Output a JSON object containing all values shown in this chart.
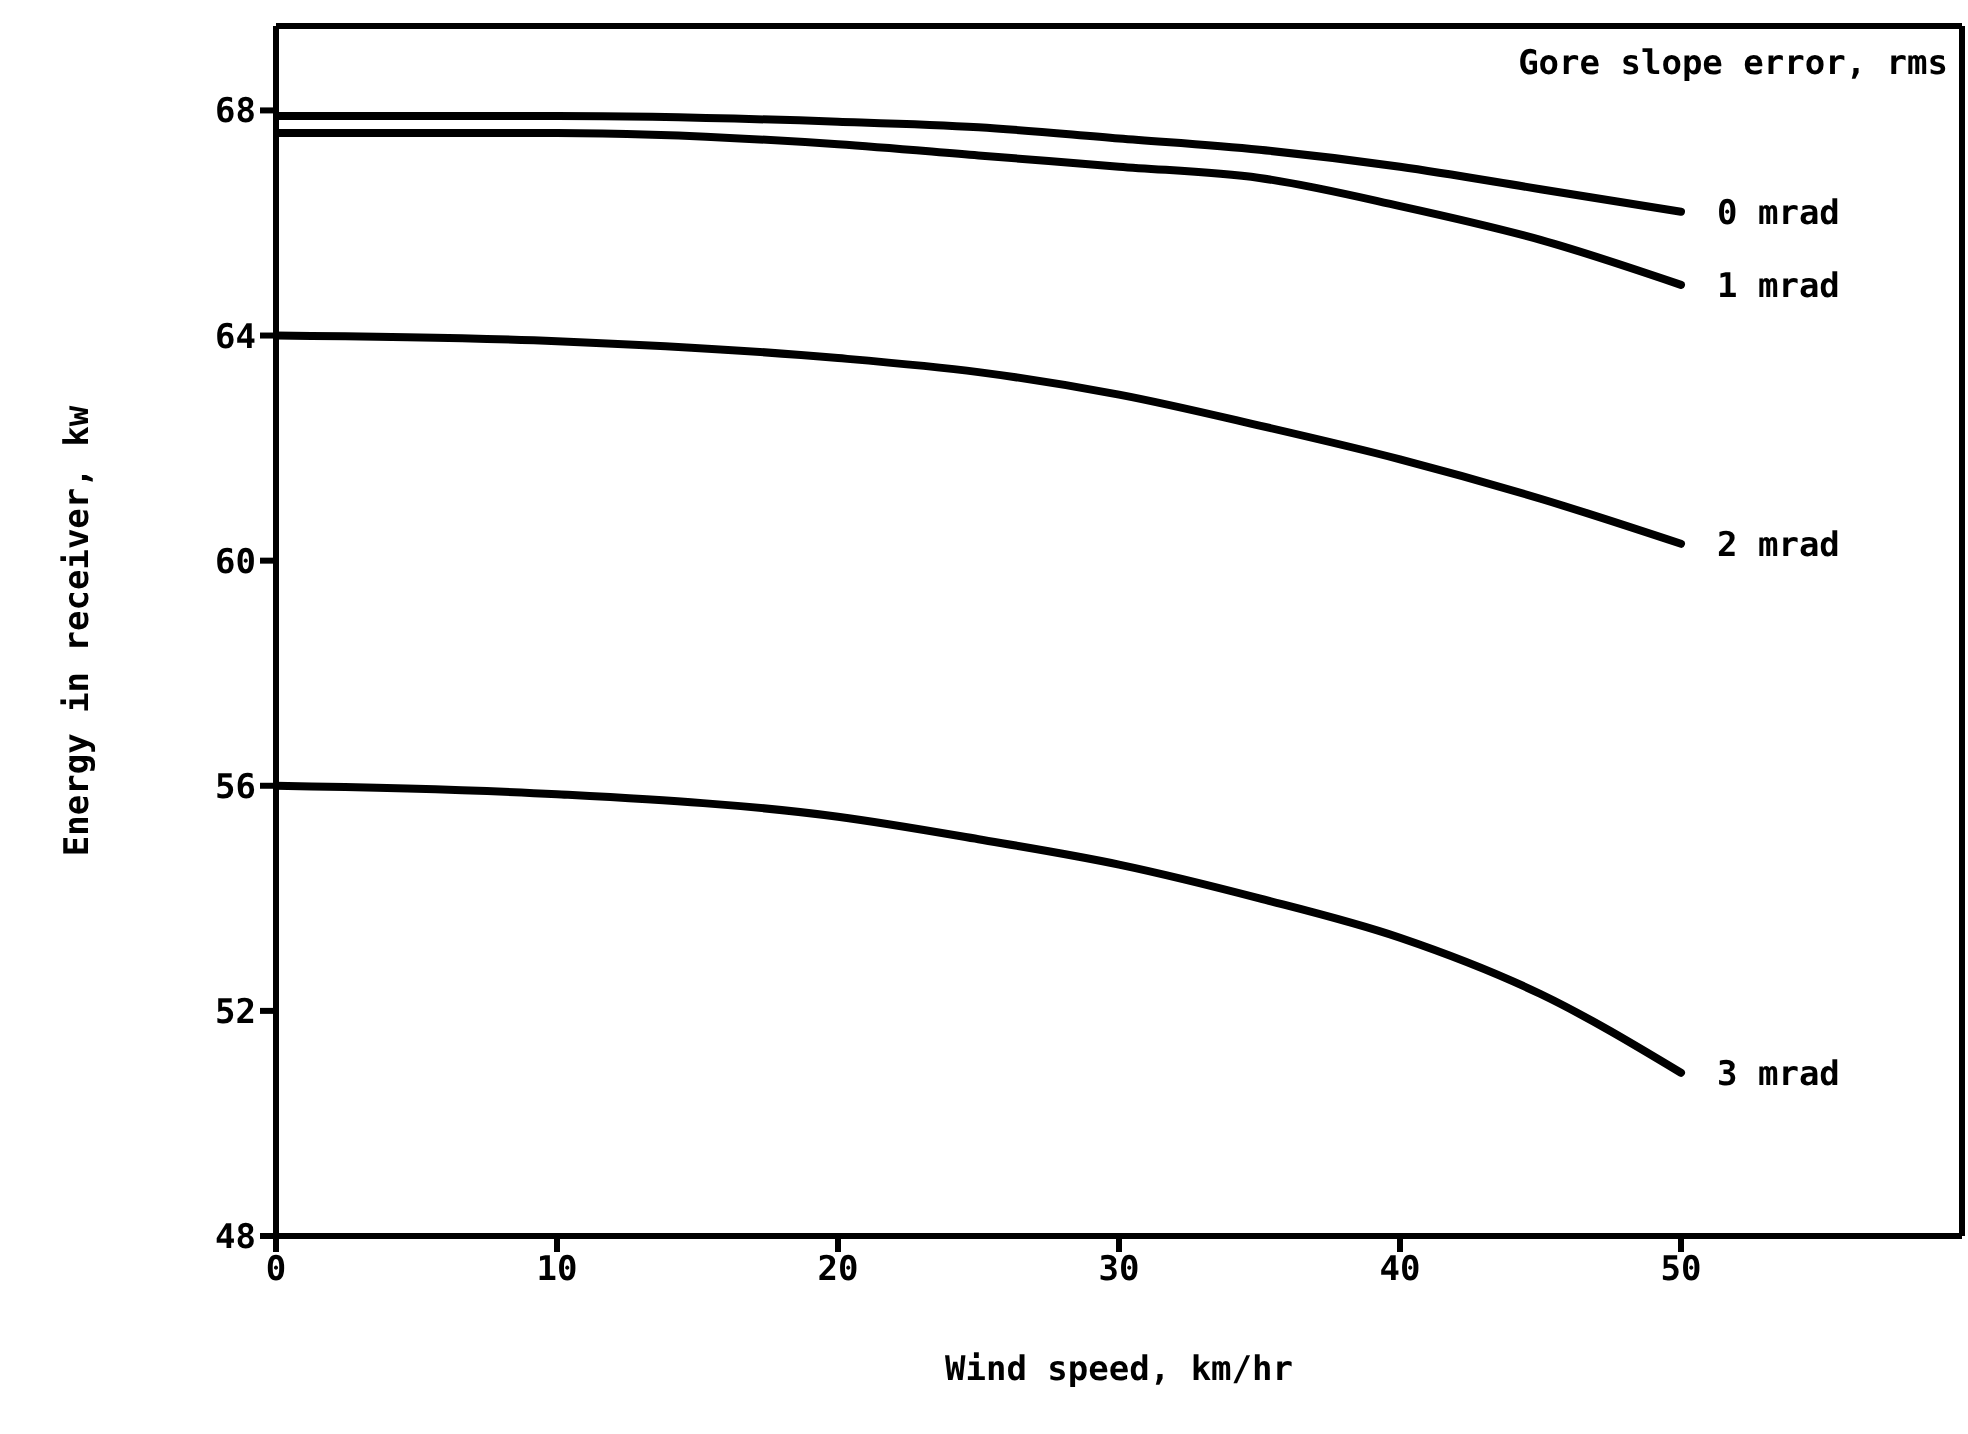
{
  "chart_data": {
    "type": "line",
    "xlabel": "Wind speed, km/hr",
    "ylabel": "Energy in receiver, kw",
    "legend_title": "Gore slope error, rms",
    "x": [
      0,
      10,
      20,
      25,
      30,
      35,
      40,
      45,
      50
    ],
    "series": [
      {
        "name": "0 mrad",
        "color": "#000000",
        "values": [
          67.9,
          67.9,
          67.8,
          67.7,
          67.5,
          67.3,
          67.0,
          66.6,
          66.2
        ]
      },
      {
        "name": "1 mrad",
        "color": "#000000",
        "values": [
          67.6,
          67.6,
          67.4,
          67.2,
          67.0,
          66.8,
          66.3,
          65.7,
          64.9
        ]
      },
      {
        "name": "2 mrad",
        "color": "#000000",
        "values": [
          64.0,
          63.9,
          63.6,
          63.35,
          62.95,
          62.4,
          61.8,
          61.1,
          60.3
        ]
      },
      {
        "name": "3 mrad",
        "color": "#000000",
        "values": [
          56.0,
          55.85,
          55.45,
          55.05,
          54.6,
          54.0,
          53.3,
          52.3,
          50.9
        ]
      }
    ],
    "xlim": [
      0,
      60
    ],
    "xticks": [
      0,
      10,
      20,
      30,
      40,
      50
    ],
    "ylim": [
      48,
      69.5
    ],
    "yticks": [
      48,
      52,
      56,
      60,
      64,
      68
    ],
    "grid": false,
    "legend": false,
    "marker": "none",
    "line_style": "solid"
  }
}
